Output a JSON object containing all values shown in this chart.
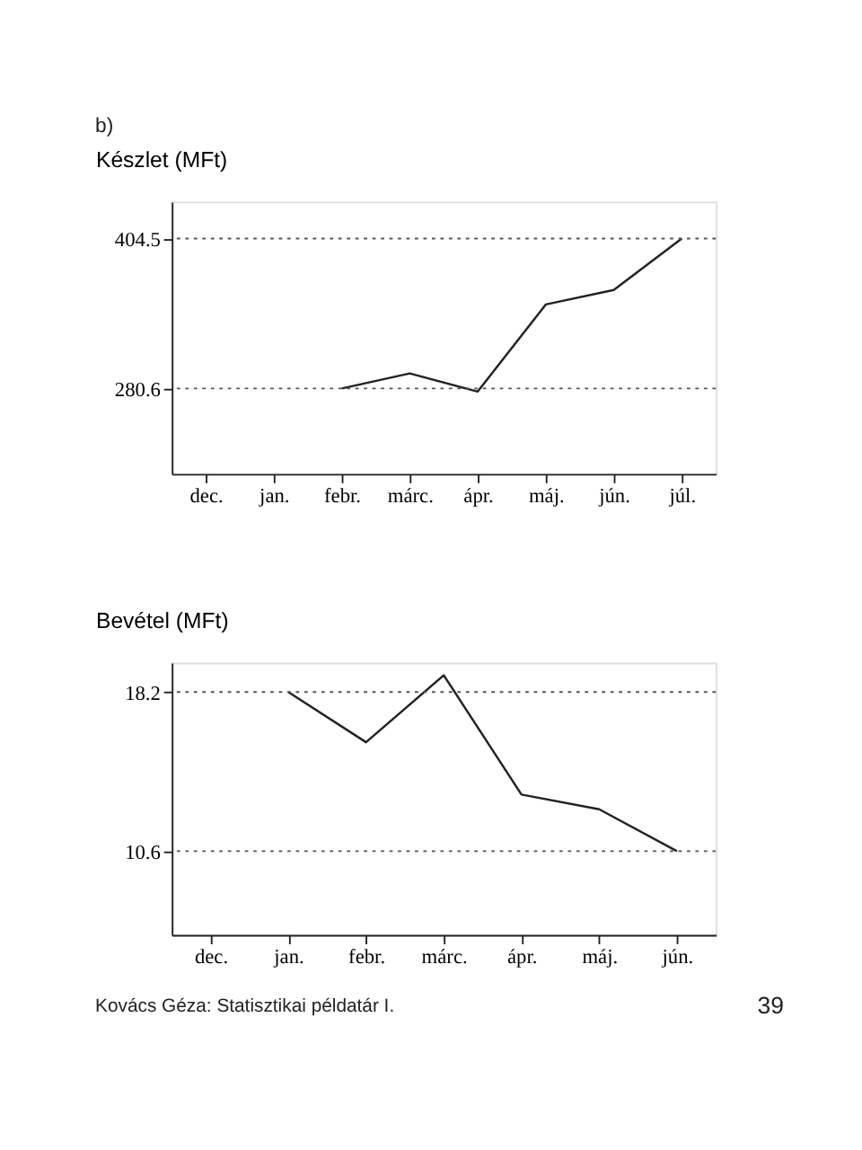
{
  "chart_data": [
    {
      "type": "line",
      "ylabel": "Készlet (MFt)",
      "annotations": [
        "b)"
      ],
      "categories": [
        "dec.",
        "jan.",
        "febr.",
        "márc.",
        "ápr.",
        "máj.",
        "jún.",
        "júl."
      ],
      "series": [
        {
          "color": "#222222",
          "values": [
            null,
            null,
            280.6,
            293,
            278,
            350,
            362,
            404.5
          ]
        }
      ],
      "ylim": [
        210,
        435
      ],
      "yticks": [
        280.6,
        404.5
      ],
      "grid": false,
      "marker": "none",
      "line_style": "solid",
      "ref_lines": [
        {
          "axis": "y",
          "value": 280.6,
          "line_style": "dotted"
        },
        {
          "axis": "y",
          "value": 404.5,
          "line_style": "dotted"
        }
      ]
    },
    {
      "type": "line",
      "ylabel": "Bevétel (MFt)",
      "annotations": [
        "Kovács Géza: Statisztikai példatár I.",
        "39"
      ],
      "categories": [
        "dec.",
        "jan.",
        "febr.",
        "márc.",
        "ápr.",
        "máj.",
        "jún."
      ],
      "series": [
        {
          "color": "#222222",
          "values": [
            null,
            18.2,
            15.8,
            19.0,
            13.3,
            12.6,
            10.6
          ]
        }
      ],
      "ylim": [
        6.6,
        19.6
      ],
      "yticks": [
        18.2,
        10.6
      ],
      "grid": false,
      "marker": "none",
      "line_style": "solid",
      "ref_lines": [
        {
          "axis": "y",
          "value": 18.2,
          "line_style": "dotted"
        },
        {
          "axis": "y",
          "value": 10.6,
          "line_style": "dotted"
        }
      ]
    }
  ]
}
